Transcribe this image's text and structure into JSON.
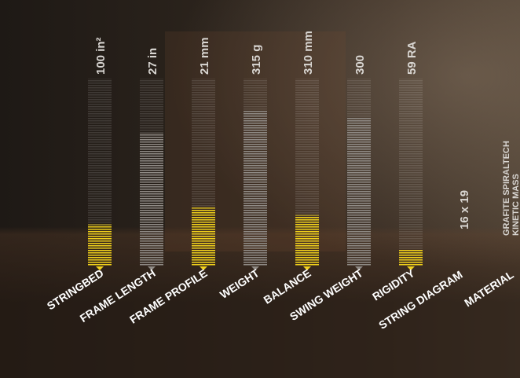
{
  "specs": [
    {
      "label": "STRINGBED",
      "value": "100 in²",
      "level": 22,
      "color": "#f2d21b"
    },
    {
      "label": "FRAME LENGTH",
      "value": "27 in",
      "level": 71,
      "color": "#8f8a85"
    },
    {
      "label": "FRAME PROFILE",
      "value": "21 mm",
      "level": 31,
      "color": "#f2d21b"
    },
    {
      "label": "WEIGHT",
      "value": "315 g",
      "level": 83,
      "color": "#8f8a85"
    },
    {
      "label": "BALANCE",
      "value": "310 mm",
      "level": 27,
      "color": "#f2d21b"
    },
    {
      "label": "SWING WEIGHT",
      "value": "300",
      "level": 79,
      "color": "#8f8a85"
    },
    {
      "label": "RIGIDITY",
      "value": "59 RA",
      "level": 9,
      "color": "#f2d21b"
    }
  ],
  "string_diagram": {
    "label": "STRING DIAGRAM",
    "value": "16 x 19"
  },
  "material": {
    "label": "MATERIAL",
    "value": [
      "GRAFITE SPIRALTECH",
      "KINETIC MASS"
    ]
  }
}
